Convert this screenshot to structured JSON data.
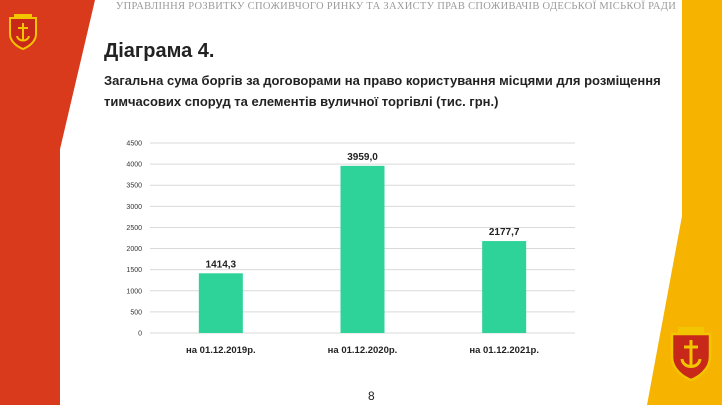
{
  "header": {
    "text": "УПРАВЛІННЯ РОЗВИТКУ СПОЖИВЧОГО РИНКУ ТА ЗАХИСТУ ПРАВ СПОЖИВАЧІВ ОДЕСЬКОЇ МІСЬКОЇ РАДИ"
  },
  "slide": {
    "title": "Діаграма 4.",
    "subtitle": "Загальна сума боргів за договорами на право користування місцями для розміщення тимчасових споруд та елементів вуличної торгівлі (тис. грн.)",
    "page_number": "8"
  },
  "colors": {
    "bar": "#2ed39a",
    "left_band": "#d93a1b",
    "right_band": "#f6b400",
    "grid": "#d9d9d9"
  },
  "icons": {
    "crest_left": "odesa-coat-of-arms-icon",
    "crest_right": "odesa-coat-of-arms-icon"
  },
  "chart_data": {
    "type": "bar",
    "categories": [
      "на 01.12.2019р.",
      "на 01.12.2020р.",
      "на 01.12.2021р."
    ],
    "values": [
      1414.3,
      3959.0,
      2177.7
    ],
    "data_labels": [
      "1414,3",
      "3959,0",
      "2177,7"
    ],
    "title": "",
    "xlabel": "",
    "ylabel": "",
    "ylim": [
      0,
      4500
    ],
    "yticks": [
      0,
      500,
      1000,
      1500,
      2000,
      2500,
      3000,
      3500,
      4000,
      4500
    ],
    "grid": true,
    "legend": "none"
  }
}
